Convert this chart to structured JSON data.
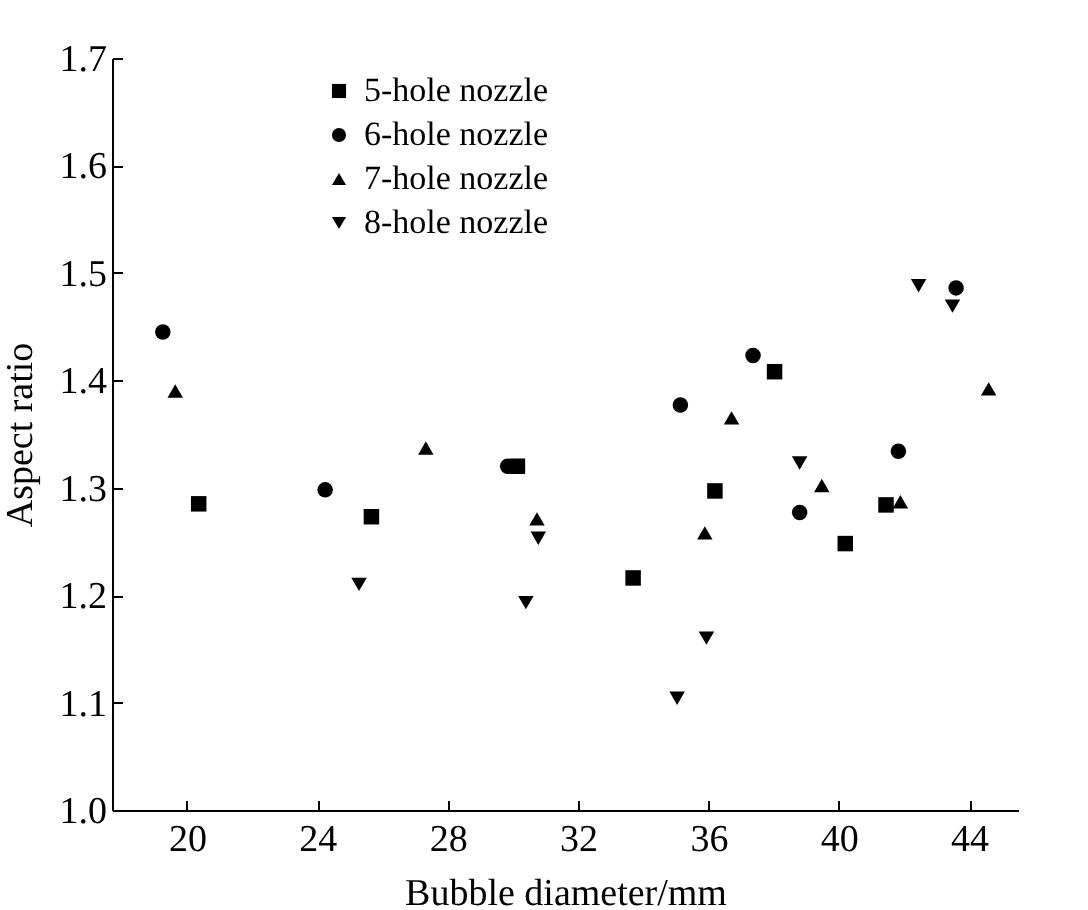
{
  "chart_data": {
    "type": "scatter",
    "xlabel": "Bubble diameter/mm",
    "ylabel": "Aspect ratio",
    "xlim": [
      17.7,
      45.5
    ],
    "xticks": [
      20,
      24,
      28,
      32,
      36,
      40,
      44
    ],
    "ylim": [
      1.0,
      1.7
    ],
    "yticks": [
      {
        "value": 1.0,
        "label": "1.0"
      },
      1.1,
      1.2,
      1.3,
      1.4,
      1.5,
      1.6,
      1.7
    ],
    "grid": false,
    "legend": "top",
    "series": [
      {
        "name": "5-hole nozzle",
        "color": "#000000",
        "marker": "square",
        "x": [
          20.36,
          25.66,
          30.14,
          33.69,
          36.2,
          38.03,
          40.2,
          41.45
        ],
        "values": [
          1.285,
          1.273,
          1.32,
          1.216,
          1.297,
          1.408,
          1.248,
          1.284
        ]
      },
      {
        "name": "6-hole nozzle",
        "color": "#000000",
        "marker": "circle",
        "x": [
          19.26,
          24.24,
          29.84,
          35.14,
          37.37,
          38.8,
          41.83,
          43.6
        ],
        "values": [
          1.445,
          1.298,
          1.32,
          1.377,
          1.423,
          1.277,
          1.334,
          1.486
        ]
      },
      {
        "name": "7-hole nozzle",
        "color": "#000000",
        "marker": "triangle",
        "x": [
          19.64,
          27.33,
          30.74,
          35.89,
          36.71,
          39.48,
          41.89,
          44.6
        ],
        "values": [
          1.39,
          1.337,
          1.271,
          1.258,
          1.365,
          1.302,
          1.287,
          1.392
        ]
      },
      {
        "name": "8-hole nozzle",
        "color": "#000000",
        "marker": "triangle-down",
        "x": [
          25.28,
          30.4,
          30.78,
          35.04,
          35.94,
          38.8,
          42.45,
          43.49
        ],
        "values": [
          1.21,
          1.193,
          1.253,
          1.104,
          1.16,
          1.323,
          1.488,
          1.469
        ]
      }
    ]
  }
}
